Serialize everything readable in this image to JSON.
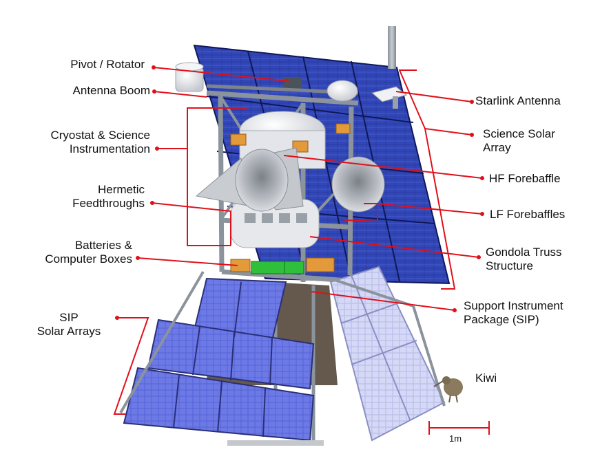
{
  "labels": {
    "pivot_rotator": "Pivot / Rotator",
    "antenna_boom": "Antenna Boom",
    "cryostat": [
      "Cryostat & Science",
      "Instrumentation"
    ],
    "hermetic": [
      "Hermetic",
      "Feedthroughs"
    ],
    "batteries": [
      "Batteries &",
      "Computer Boxes"
    ],
    "sip_arrays": [
      "SIP",
      "Solar Arrays"
    ],
    "starlink": "Starlink Antenna",
    "science_solar": [
      "Science Solar",
      "Array"
    ],
    "hf_forebaffle": "HF Forebaffle",
    "lf_forebaffles": "LF Forebaffles",
    "gondola_truss": [
      "Gondola Truss",
      "Structure"
    ],
    "sip": [
      "Support Instrument",
      "Package (SIP)"
    ],
    "kiwi": "Kiwi"
  },
  "scale_bar": {
    "label": "1m"
  },
  "colors": {
    "leader": "#e0101a",
    "panel_dark": "#1b2a8c",
    "panel_light": "#c9cdf2",
    "truss": "#8b939c",
    "cryostat": "#e3e5ea",
    "batteries_green": "#2fbf3a"
  }
}
